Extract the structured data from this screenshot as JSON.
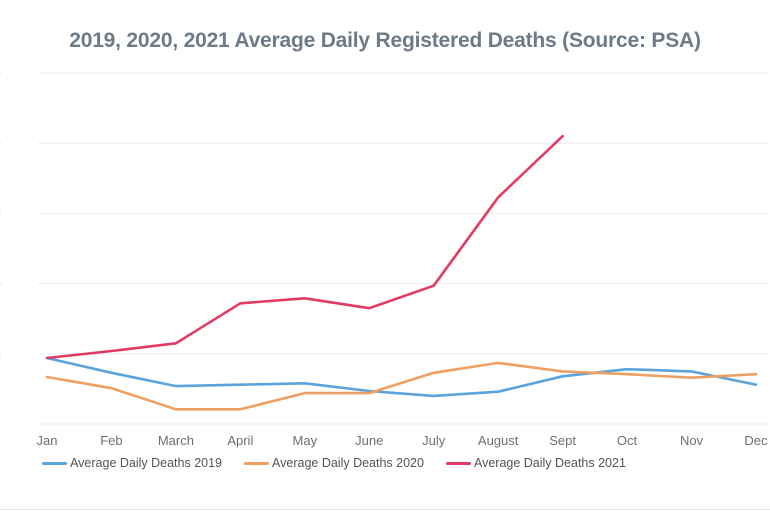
{
  "chart_data": {
    "type": "line",
    "title": "2019, 2020, 2021 Average Daily Registered Deaths (Source: PSA)",
    "xlabel": "",
    "ylabel": "",
    "categories": [
      "Jan",
      "Feb",
      "March",
      "April",
      "May",
      "June",
      "July",
      "August",
      "Sept",
      "Oct",
      "Nov",
      "Dec"
    ],
    "series": [
      {
        "name": "Average Daily Deaths 2019",
        "color": "#5ba3db",
        "values": [
          94,
          73,
          54,
          56,
          58,
          47,
          40,
          46,
          68,
          78,
          75,
          56
        ]
      },
      {
        "name": "Average Daily Deaths 2020",
        "color": "#eea063",
        "values": [
          67,
          51,
          21,
          21,
          44,
          44,
          73,
          87,
          75,
          71,
          66,
          71
        ]
      },
      {
        "name": "Average Daily Deaths 2021",
        "color": "#e13a63",
        "values": [
          94,
          104,
          115,
          172,
          179,
          165,
          197,
          323,
          410,
          null,
          null,
          null
        ]
      }
    ],
    "ylim": [
      0,
      520
    ],
    "gridline_step": 100,
    "grid": "horizontal",
    "legend_position": "bottom",
    "y_axis_note": "tick labels cropped at left image edge; only right sliver of trailing 0 digit visible at each gridline",
    "y_tick_visible_fragment": "0",
    "values_unit_note": "relative scale estimated from unlabeled gridlines (100 units per gridline interval)"
  },
  "colors": {
    "title_text": "#6d7a87",
    "axis_text": "#6e6e6e",
    "legend_text": "#545454",
    "gridline": "#ececec",
    "series_2019": "#5ba3db",
    "series_2020": "#eea063",
    "series_2021": "#e13a63"
  }
}
